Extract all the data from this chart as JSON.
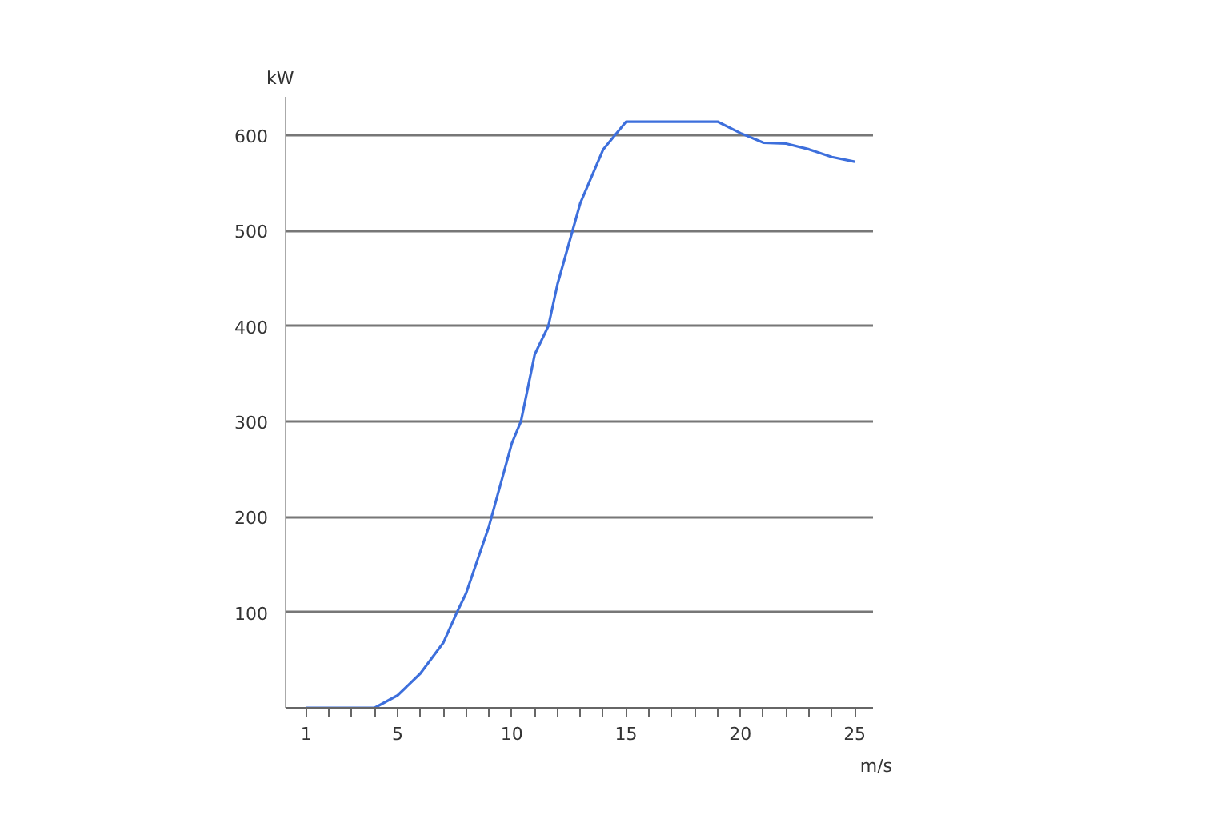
{
  "chart_data": {
    "type": "line",
    "xlabel": "m/s",
    "ylabel": "kW",
    "x": [
      1,
      2,
      3,
      4,
      5,
      6,
      7,
      7.6,
      8,
      9,
      10,
      10.4,
      11,
      11.6,
      12,
      13,
      14,
      15,
      16,
      17,
      18,
      19,
      20,
      21,
      22,
      23,
      24,
      25
    ],
    "series": [
      {
        "color": "#3d6fdc",
        "values": [
          0,
          0,
          0,
          0,
          13,
          36,
          68,
          100,
          120,
          190,
          277,
          300,
          370,
          400,
          444,
          529,
          585,
          614,
          614,
          614,
          614,
          614,
          602,
          592,
          591,
          585,
          577,
          572
        ]
      }
    ],
    "xlim": [
      0.1,
      25.8
    ],
    "ylim": [
      0,
      640
    ],
    "xticks": [
      1,
      {
        "value": 2,
        "label": null
      },
      {
        "value": 3,
        "label": null
      },
      {
        "value": 4,
        "label": null
      },
      5,
      {
        "value": 6,
        "label": null
      },
      {
        "value": 7,
        "label": null
      },
      {
        "value": 8,
        "label": null
      },
      {
        "value": 9,
        "label": null
      },
      10,
      {
        "value": 11,
        "label": null
      },
      {
        "value": 12,
        "label": null
      },
      {
        "value": 13,
        "label": null
      },
      {
        "value": 14,
        "label": null
      },
      15,
      {
        "value": 16,
        "label": null
      },
      {
        "value": 17,
        "label": null
      },
      {
        "value": 18,
        "label": null
      },
      {
        "value": 19,
        "label": null
      },
      20,
      {
        "value": 21,
        "label": null
      },
      {
        "value": 22,
        "label": null
      },
      {
        "value": 23,
        "label": null
      },
      {
        "value": 24,
        "label": null
      },
      25
    ],
    "yticks": [
      100,
      200,
      300,
      400,
      500,
      600
    ],
    "grid": "y",
    "marker": "none",
    "line_style": "solid"
  }
}
